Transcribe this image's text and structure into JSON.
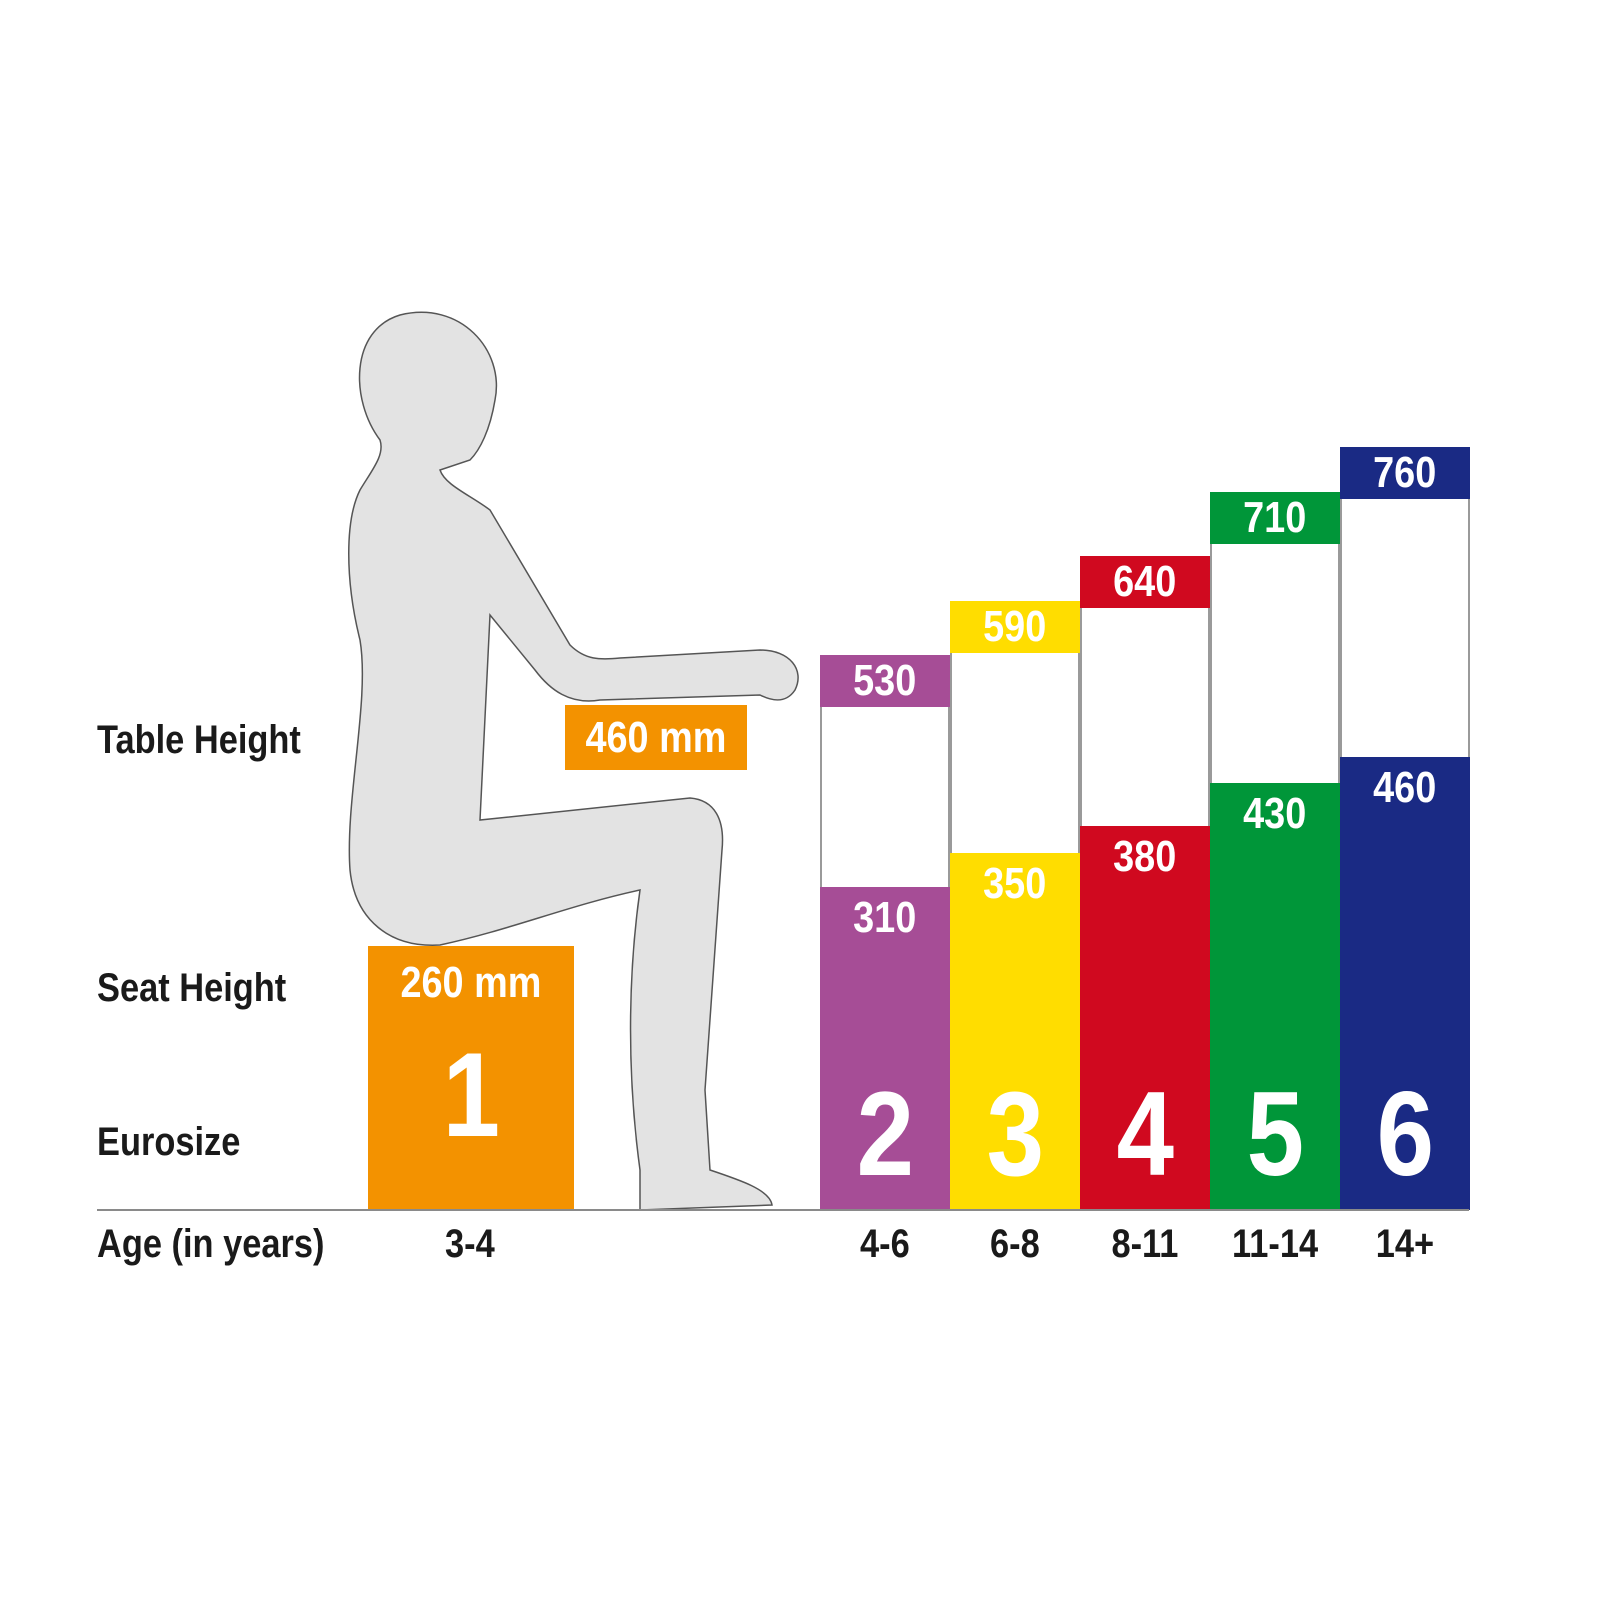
{
  "chart_data": {
    "type": "bar",
    "row_labels": {
      "table_height": "Table Height",
      "seat_height": "Seat Height",
      "eurosize": "Eurosize",
      "age": "Age (in years)"
    },
    "unit": "mm",
    "first": {
      "size": "1",
      "age": "3-4",
      "seat_label": "260 mm",
      "table_label": "460 mm",
      "seat": 260,
      "table": 460,
      "color": "#F39200"
    },
    "sizes": [
      {
        "size": "2",
        "age": "4-6",
        "seat": 310,
        "table": 530,
        "seat_text": "310",
        "table_text": "530",
        "color": "#A64D96"
      },
      {
        "size": "3",
        "age": "6-8",
        "seat": 350,
        "table": 590,
        "seat_text": "350",
        "table_text": "590",
        "color": "#FFDD00"
      },
      {
        "size": "4",
        "age": "8-11",
        "seat": 380,
        "table": 640,
        "seat_text": "380",
        "table_text": "640",
        "color": "#D0091F"
      },
      {
        "size": "5",
        "age": "11-14",
        "seat": 430,
        "table": 710,
        "seat_text": "430",
        "table_text": "710",
        "color": "#009639"
      },
      {
        "size": "6",
        "age": "14+",
        "seat": 460,
        "table": 760,
        "seat_text": "460",
        "table_text": "760",
        "color": "#1A2A84"
      }
    ],
    "figure_color": "#E3E3E3"
  }
}
